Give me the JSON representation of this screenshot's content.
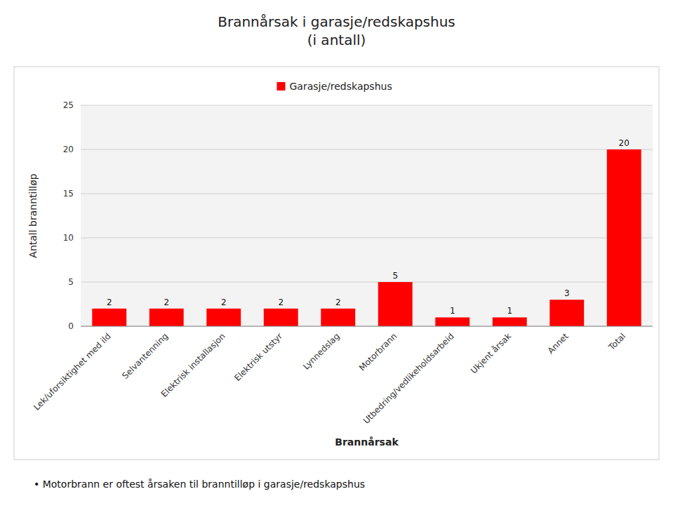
{
  "chart_data": {
    "type": "bar",
    "title": "Brannårsak i garasje/redskapshus\n(i antall)",
    "x_label": "Brannårsak",
    "y_label": "Antall branntilløp",
    "categories": [
      "Lek/uforsiktighet med ild",
      "Selvantenning",
      "Elektrisk installasjon",
      "Elektrisk utstyr",
      "Lynnedslag",
      "Motorbrann",
      "Utbedring/vedlikeholdsarbeid",
      "Ukjent årsak",
      "Annet",
      "Total"
    ],
    "series": [
      {
        "name": "Garasje/redskapshus",
        "color": "#FF0000",
        "values": [
          2,
          2,
          2,
          2,
          2,
          5,
          1,
          1,
          3,
          20
        ]
      }
    ],
    "ylim": [
      0,
      25
    ],
    "yticks": [
      0,
      5,
      10,
      15,
      20,
      25
    ],
    "grid": true,
    "legend": "top",
    "data_labels": true,
    "annotations": [
      "•  Motorbrann er oftest årsaken til branntilløp i garasje/redskapshus"
    ]
  }
}
